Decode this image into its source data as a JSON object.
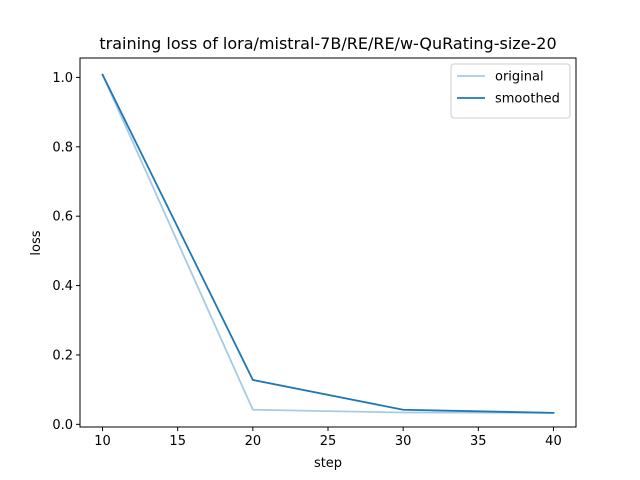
{
  "chart_data": {
    "type": "line",
    "title": "training loss of lora/mistral-7B/RE/RE/w-QuRating-size-20",
    "xlabel": "step",
    "ylabel": "loss",
    "xlim": [
      8.5,
      41.5
    ],
    "ylim": [
      -0.0077,
      1.056
    ],
    "xticks": [
      10,
      15,
      20,
      25,
      30,
      35,
      40
    ],
    "xtick_labels": [
      "10",
      "15",
      "20",
      "25",
      "30",
      "35",
      "40"
    ],
    "yticks": [
      0.0,
      0.2,
      0.4,
      0.6,
      0.8,
      1.0
    ],
    "ytick_labels": [
      "0.0",
      "0.2",
      "0.4",
      "0.6",
      "0.8",
      "1.0"
    ],
    "grid": false,
    "legend_location": "upper right",
    "x": [
      10,
      20,
      30,
      40
    ],
    "series": [
      {
        "name": "original",
        "color": "#a6cbe3",
        "values": [
          1.008,
          0.042,
          0.034,
          0.033
        ]
      },
      {
        "name": "smoothed",
        "color": "#1f77b4",
        "values": [
          1.008,
          0.128,
          0.042,
          0.033
        ]
      }
    ]
  }
}
